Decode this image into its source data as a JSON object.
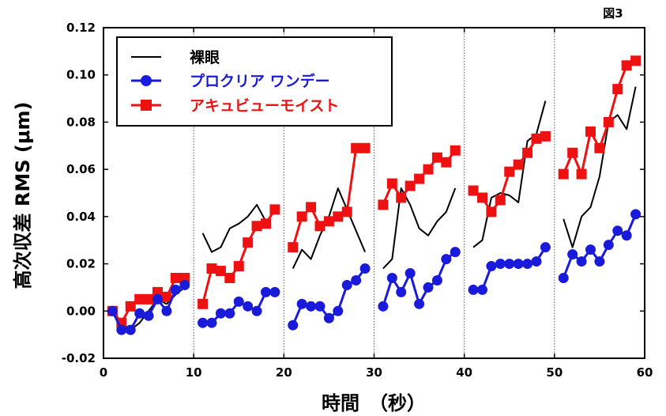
{
  "corner_label": "図3",
  "chart_data": {
    "type": "line",
    "title": "",
    "xlabel": "時間　（秒）",
    "ylabel": "高次収差 RMS (μm)",
    "xlim": [
      0,
      60
    ],
    "ylim": [
      -0.02,
      0.12
    ],
    "x_ticks": [
      0,
      10,
      20,
      30,
      40,
      50,
      60
    ],
    "x_tick_labels": [
      "0",
      "10",
      "20",
      "30",
      "40",
      "50",
      "60"
    ],
    "y_ticks": [
      -0.02,
      0,
      0.02,
      0.04,
      0.06,
      0.08,
      0.1,
      0.12
    ],
    "y_tick_labels": [
      "-0.02",
      "0.00",
      "0.02",
      "0.04",
      "0.06",
      "0.08",
      "0.10",
      "0.12"
    ],
    "dividers_x": [
      10,
      20,
      30,
      40,
      50
    ],
    "legend_position": "top-left",
    "series": [
      {
        "name": "裸眼",
        "color": "#000000",
        "marker": "none",
        "segments": [
          {
            "x": [
              1,
              2,
              3,
              4,
              5,
              6,
              7,
              8,
              9
            ],
            "y": [
              0.0,
              -0.005,
              -0.008,
              -0.005,
              0.0,
              0.005,
              0.003,
              0.007,
              0.01
            ]
          },
          {
            "x": [
              11,
              12,
              13,
              14,
              15,
              16,
              17,
              18
            ],
            "y": [
              0.033,
              0.025,
              0.027,
              0.035,
              0.037,
              0.04,
              0.045,
              0.038
            ]
          },
          {
            "x": [
              21,
              22,
              23,
              24,
              25,
              26,
              27,
              28,
              29
            ],
            "y": [
              0.018,
              0.026,
              0.022,
              0.032,
              0.04,
              0.052,
              0.043,
              0.034,
              0.025
            ]
          },
          {
            "x": [
              31,
              32,
              33,
              34,
              35,
              36,
              37,
              38,
              39
            ],
            "y": [
              0.018,
              0.022,
              0.052,
              0.045,
              0.035,
              0.032,
              0.038,
              0.042,
              0.052
            ]
          },
          {
            "x": [
              41,
              42,
              43,
              44,
              45,
              46,
              47,
              48,
              49
            ],
            "y": [
              0.027,
              0.03,
              0.048,
              0.05,
              0.049,
              0.046,
              0.072,
              0.075,
              0.089
            ]
          },
          {
            "x": [
              51,
              52,
              53,
              54,
              55,
              56,
              57,
              58,
              59
            ],
            "y": [
              0.039,
              0.027,
              0.04,
              0.044,
              0.057,
              0.08,
              0.083,
              0.077,
              0.095
            ]
          }
        ]
      },
      {
        "name": "プロクリア ワンデー",
        "color": "#1a1adb",
        "marker": "circle",
        "segments": [
          {
            "x": [
              1,
              2,
              3,
              4,
              5,
              6,
              7,
              8,
              9
            ],
            "y": [
              0.0,
              -0.008,
              -0.008,
              -0.001,
              -0.002,
              0.005,
              0.0,
              0.009,
              0.011
            ]
          },
          {
            "x": [
              11,
              12,
              13,
              14,
              15,
              16,
              17,
              18,
              19
            ],
            "y": [
              -0.005,
              -0.005,
              -0.001,
              -0.001,
              0.004,
              0.002,
              0.0,
              0.008,
              0.008
            ]
          },
          {
            "x": [
              21,
              22,
              23,
              24,
              25,
              26,
              27,
              28,
              29
            ],
            "y": [
              -0.006,
              0.003,
              0.002,
              0.002,
              -0.003,
              0.0,
              0.011,
              0.013,
              0.018
            ]
          },
          {
            "x": [
              31,
              32,
              33,
              34,
              35,
              36,
              37,
              38,
              39
            ],
            "y": [
              0.002,
              0.014,
              0.008,
              0.016,
              0.003,
              0.01,
              0.013,
              0.022,
              0.025
            ]
          },
          {
            "x": [
              41,
              42,
              43,
              44,
              45,
              46,
              47,
              48,
              49
            ],
            "y": [
              0.009,
              0.009,
              0.019,
              0.02,
              0.02,
              0.02,
              0.02,
              0.021,
              0.027
            ]
          },
          {
            "x": [
              51,
              52,
              53,
              54,
              55,
              56,
              57,
              58,
              59
            ],
            "y": [
              0.014,
              0.024,
              0.021,
              0.026,
              0.021,
              0.028,
              0.034,
              0.032,
              0.041
            ]
          }
        ]
      },
      {
        "name": "アキュビューモイスト",
        "color": "#ee1111",
        "marker": "square",
        "segments": [
          {
            "x": [
              1,
              2,
              3,
              4,
              5,
              6,
              7,
              8,
              9
            ],
            "y": [
              0.0,
              -0.005,
              0.002,
              0.005,
              0.005,
              0.008,
              0.006,
              0.014,
              0.014
            ]
          },
          {
            "x": [
              11,
              12,
              13,
              14,
              15,
              16,
              17,
              18,
              19
            ],
            "y": [
              0.003,
              0.018,
              0.017,
              0.014,
              0.019,
              0.029,
              0.036,
              0.037,
              0.043
            ]
          },
          {
            "x": [
              21,
              22,
              23,
              24,
              25,
              26,
              27,
              28,
              29
            ],
            "y": [
              0.027,
              0.04,
              0.044,
              0.036,
              0.038,
              0.04,
              0.042,
              0.069,
              0.069
            ]
          },
          {
            "x": [
              31,
              32,
              33,
              34,
              35,
              36,
              37,
              38,
              39
            ],
            "y": [
              0.045,
              0.054,
              0.048,
              0.053,
              0.056,
              0.06,
              0.065,
              0.063,
              0.068
            ]
          },
          {
            "x": [
              41,
              42,
              43,
              44,
              45,
              46,
              47,
              48,
              49
            ],
            "y": [
              0.051,
              0.048,
              0.042,
              0.047,
              0.059,
              0.062,
              0.067,
              0.073,
              0.074
            ]
          },
          {
            "x": [
              51,
              52,
              53,
              54,
              55,
              56,
              57,
              58,
              59
            ],
            "y": [
              0.058,
              0.067,
              0.058,
              0.076,
              0.069,
              0.08,
              0.094,
              0.104,
              0.106
            ]
          }
        ]
      }
    ]
  }
}
